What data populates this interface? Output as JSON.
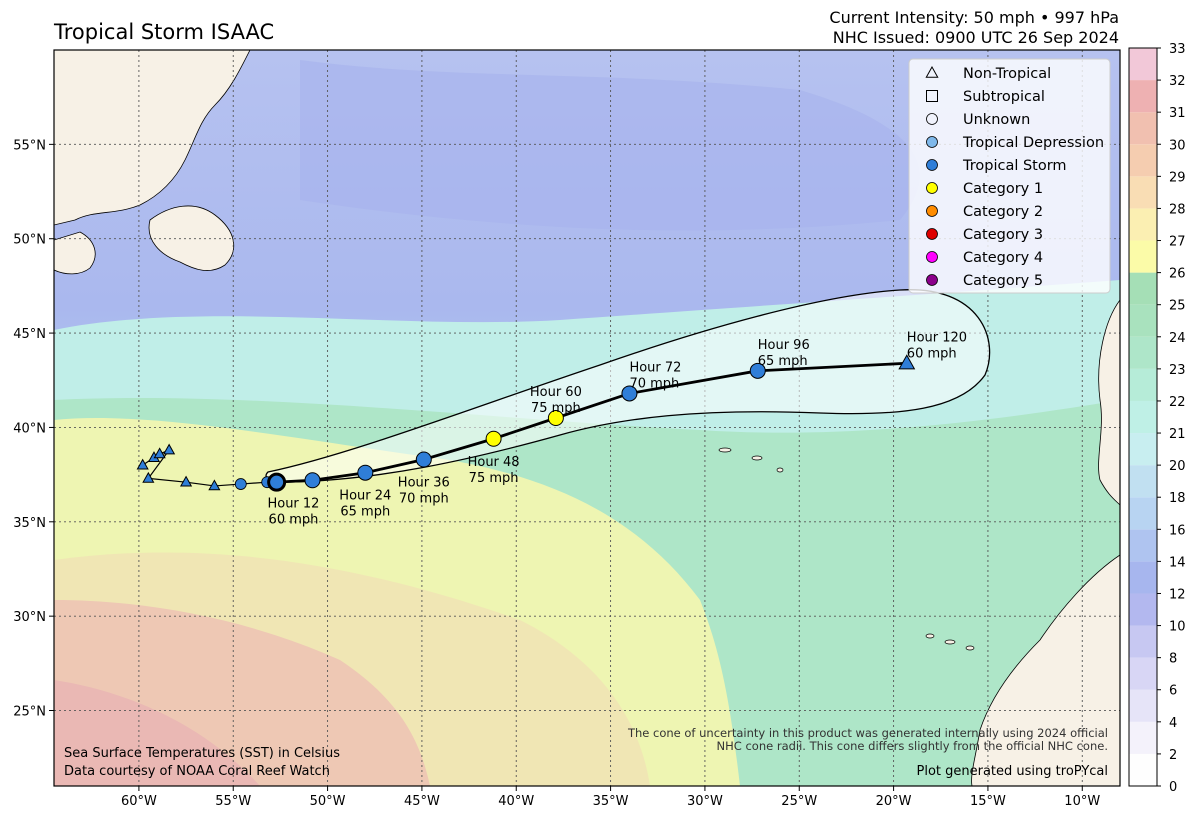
{
  "header": {
    "title": "Tropical Storm ISAAC",
    "intensity_line": "Current Intensity: 50 mph • 997 hPa",
    "issued_line": "NHC Issued: 0900 UTC 26 Sep 2024"
  },
  "map": {
    "lon_range": [
      -64.5,
      -8
    ],
    "lat_range": [
      21,
      60
    ],
    "lon_ticks": [
      {
        "value": -60,
        "label": "60°W"
      },
      {
        "value": -55,
        "label": "55°W"
      },
      {
        "value": -50,
        "label": "50°W"
      },
      {
        "value": -45,
        "label": "45°W"
      },
      {
        "value": -40,
        "label": "40°W"
      },
      {
        "value": -35,
        "label": "35°W"
      },
      {
        "value": -30,
        "label": "30°W"
      },
      {
        "value": -25,
        "label": "25°W"
      },
      {
        "value": -20,
        "label": "20°W"
      },
      {
        "value": -15,
        "label": "15°W"
      },
      {
        "value": -10,
        "label": "10°W"
      }
    ],
    "lat_ticks": [
      {
        "value": 25,
        "label": "25°N"
      },
      {
        "value": 30,
        "label": "30°N"
      },
      {
        "value": 35,
        "label": "35°N"
      },
      {
        "value": 40,
        "label": "40°N"
      },
      {
        "value": 45,
        "label": "45°N"
      },
      {
        "value": 50,
        "label": "50°N"
      },
      {
        "value": 55,
        "label": "55°N"
      }
    ],
    "grid": true
  },
  "legend": {
    "items": [
      {
        "label": "Non-Tropical",
        "marker": "triangle-icon",
        "fill": "none"
      },
      {
        "label": "Subtropical",
        "marker": "square-icon",
        "fill": "none"
      },
      {
        "label": "Unknown",
        "marker": "circle-icon",
        "fill": "none"
      },
      {
        "label": "Tropical Depression",
        "marker": "circle-icon",
        "fill": "#7fb8ea"
      },
      {
        "label": "Tropical Storm",
        "marker": "circle-icon",
        "fill": "#2f7ed8"
      },
      {
        "label": "Category 1",
        "marker": "circle-icon",
        "fill": "#ffff00"
      },
      {
        "label": "Category 2",
        "marker": "circle-icon",
        "fill": "#ff8c00"
      },
      {
        "label": "Category 3",
        "marker": "circle-icon",
        "fill": "#dd0000"
      },
      {
        "label": "Category 4",
        "marker": "circle-icon",
        "fill": "#ff00ff"
      },
      {
        "label": "Category 5",
        "marker": "circle-icon",
        "fill": "#8b008b"
      }
    ]
  },
  "past_track": [
    {
      "lon": -59.8,
      "lat": 38.0,
      "type": "triangle"
    },
    {
      "lon": -59.2,
      "lat": 38.4,
      "type": "triangle"
    },
    {
      "lon": -58.9,
      "lat": 38.6,
      "type": "triangle"
    },
    {
      "lon": -58.4,
      "lat": 38.8,
      "type": "triangle"
    },
    {
      "lon": -59.5,
      "lat": 37.3,
      "type": "triangle"
    },
    {
      "lon": -57.5,
      "lat": 37.1,
      "type": "triangle"
    },
    {
      "lon": -56.0,
      "lat": 36.9,
      "type": "triangle"
    },
    {
      "lon": -54.6,
      "lat": 37.0,
      "type": "circle"
    },
    {
      "lon": -53.2,
      "lat": 37.1,
      "type": "circle"
    }
  ],
  "forecast_track": [
    {
      "lon": -52.7,
      "lat": 37.1,
      "label": "",
      "wind": "",
      "color": "#2f7ed8",
      "current": true
    },
    {
      "lon": -50.8,
      "lat": 37.2,
      "label": "Hour 12",
      "wind": "60 mph",
      "color": "#2f7ed8",
      "label_pos": "below-left"
    },
    {
      "lon": -48.0,
      "lat": 37.6,
      "label": "Hour 24",
      "wind": "65 mph",
      "color": "#2f7ed8",
      "label_pos": "below"
    },
    {
      "lon": -44.9,
      "lat": 38.3,
      "label": "Hour 36",
      "wind": "70 mph",
      "color": "#2f7ed8",
      "label_pos": "below"
    },
    {
      "lon": -41.2,
      "lat": 39.4,
      "label": "Hour 48",
      "wind": "75 mph",
      "color": "#ffff00",
      "label_pos": "below"
    },
    {
      "lon": -37.9,
      "lat": 40.5,
      "label": "Hour 60",
      "wind": "75 mph",
      "color": "#ffff00",
      "label_pos": "above"
    },
    {
      "lon": -34.0,
      "lat": 41.8,
      "label": "Hour 72",
      "wind": "70 mph",
      "color": "#2f7ed8",
      "label_pos": "above"
    },
    {
      "lon": -27.2,
      "lat": 43.0,
      "label": "Hour 96",
      "wind": "65 mph",
      "color": "#2f7ed8",
      "label_pos": "above"
    },
    {
      "lon": -19.3,
      "lat": 43.4,
      "label": "Hour 120",
      "wind": "60 mph",
      "color": "#2f7ed8",
      "label_pos": "above",
      "marker": "triangle"
    }
  ],
  "notes": {
    "sst_line1": "Sea Surface Temperatures (SST) in Celsius",
    "sst_line2": "Data courtesy of NOAA Coral Reef Watch",
    "cone_line1": "The cone of uncertainty in this product was generated internally using 2024 official",
    "cone_line2": "NHC cone radii. This cone differs slightly from the official NHC cone.",
    "credit": "Plot generated using troPYcal"
  },
  "colorbar": {
    "ticks": [
      "0",
      "2",
      "4",
      "6",
      "8",
      "10",
      "12",
      "14",
      "16",
      "18",
      "20",
      "21",
      "22",
      "23",
      "24",
      "25",
      "26",
      "27",
      "28",
      "29",
      "30",
      "31",
      "32",
      "33"
    ],
    "colors": [
      "#fefefe",
      "#f4f2fb",
      "#e6e4f8",
      "#d8d6f5",
      "#c7c8f2",
      "#b3b8ef",
      "#a7b6ee",
      "#afc4f0",
      "#b8d4f2",
      "#c1e0f1",
      "#c8eef0",
      "#bff0e6",
      "#b6ecd8",
      "#aee6c9",
      "#a9e2be",
      "#a5dfb6",
      "#fbfba8",
      "#fbefb2",
      "#f9ddb4",
      "#f5cdb0",
      "#f1c0b0",
      "#eeb1b2",
      "#f2c8d8",
      "#f8dcef"
    ]
  }
}
